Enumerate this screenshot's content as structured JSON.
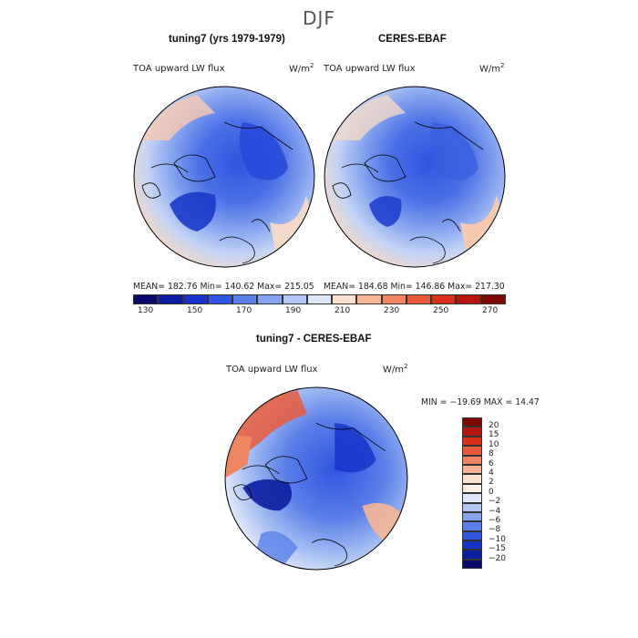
{
  "season_title": "DJF",
  "panels": [
    {
      "title": "tuning7 (yrs 1979-1979)",
      "var_label": "TOA upward LW flux",
      "units": "W/m",
      "units_sup": "2",
      "stats": "MEAN= 182.76   Min= 140.62   Max= 215.05"
    },
    {
      "title": "CERES-EBAF",
      "var_label": "TOA upward LW flux",
      "units": "W/m",
      "units_sup": "2",
      "stats": "MEAN= 184.68   Min= 146.86   Max= 217.30"
    }
  ],
  "shared_colorbar": {
    "ticks": [
      "130",
      "150",
      "170",
      "190",
      "210",
      "230",
      "250",
      "270"
    ],
    "colors": [
      "#08086a",
      "#0c1ea0",
      "#1834c8",
      "#2f55e0",
      "#5a7fe8",
      "#86a3ef",
      "#b3c6f5",
      "#dde7fa",
      "#fde1cf",
      "#f7b596",
      "#f08562",
      "#e85a3a",
      "#d9301a",
      "#b3170f",
      "#7e0a05"
    ]
  },
  "diff_panel": {
    "title": "tuning7 - CERES-EBAF",
    "var_label": "TOA upward LW flux",
    "units": "W/m",
    "units_sup": "2",
    "stats": "MIN = −19.69 MAX =  14.47",
    "colorbar_ticks": [
      "20",
      "15",
      "10",
      "8",
      "6",
      "4",
      "2",
      "0",
      "−2",
      "−4",
      "−6",
      "−8",
      "−10",
      "−15",
      "−20"
    ],
    "colorbar_colors": [
      "#7e0a05",
      "#b3170f",
      "#d9301a",
      "#e85a3a",
      "#f08562",
      "#f7b596",
      "#fde1cf",
      "#fbf1e6",
      "#dde7fa",
      "#b3c6f5",
      "#86a3ef",
      "#5a7fe8",
      "#2f55e0",
      "#1834c8",
      "#0c1ea0",
      "#08086a"
    ]
  }
}
